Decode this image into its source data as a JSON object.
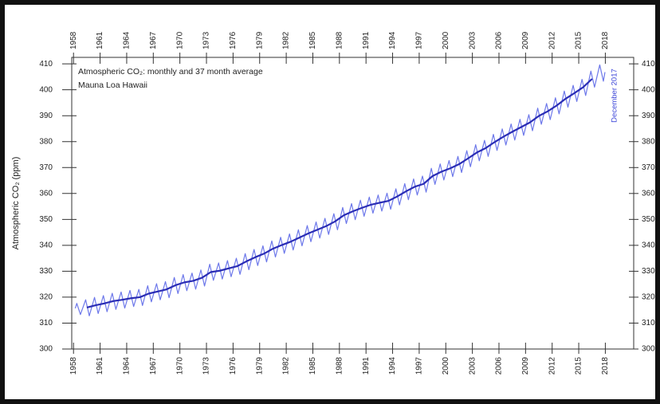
{
  "chart_data": {
    "type": "line",
    "title": "Atmospheric CO₂: monthly and 37 month average",
    "subtitle": "Mauna Loa Hawaii",
    "y_label": "Atmospheric CO₂ (ppm)",
    "annotation": "December 2017",
    "xlim": [
      1957.8,
      2021.2
    ],
    "ylim": [
      300,
      412.5
    ],
    "xticks": [
      1958,
      1961,
      1964,
      1967,
      1970,
      1973,
      1976,
      1979,
      1982,
      1985,
      1988,
      1991,
      1994,
      1997,
      2000,
      2003,
      2006,
      2009,
      2012,
      2015,
      2018
    ],
    "yticks": [
      300,
      310,
      320,
      330,
      340,
      350,
      360,
      370,
      380,
      390,
      400,
      410
    ],
    "grid": false,
    "series": [
      {
        "color": "#6d78ea",
        "x": [
          1958.2,
          1958.37,
          1958.78,
          1959.37,
          1959.78,
          1960.37,
          1960.78,
          1961.37,
          1961.78,
          1962.37,
          1962.78,
          1963.37,
          1963.78,
          1964.37,
          1964.78,
          1965.37,
          1965.78,
          1966.37,
          1966.78,
          1967.37,
          1967.78,
          1968.37,
          1968.78,
          1969.37,
          1969.78,
          1970.37,
          1970.78,
          1971.37,
          1971.78,
          1972.37,
          1972.78,
          1973.37,
          1973.78,
          1974.37,
          1974.78,
          1975.37,
          1975.78,
          1976.37,
          1976.78,
          1977.37,
          1977.78,
          1978.37,
          1978.78,
          1979.37,
          1979.78,
          1980.37,
          1980.78,
          1981.37,
          1981.78,
          1982.37,
          1982.78,
          1983.37,
          1983.78,
          1984.37,
          1984.78,
          1985.37,
          1985.78,
          1986.37,
          1986.78,
          1987.37,
          1987.78,
          1988.37,
          1988.78,
          1989.37,
          1989.78,
          1990.37,
          1990.78,
          1991.37,
          1991.78,
          1992.37,
          1992.78,
          1993.37,
          1993.78,
          1994.37,
          1994.78,
          1995.37,
          1995.78,
          1996.37,
          1996.78,
          1997.37,
          1997.78,
          1998.37,
          1998.78,
          1999.37,
          1999.78,
          2000.37,
          2000.78,
          2001.37,
          2001.78,
          2002.37,
          2002.78,
          2003.37,
          2003.78,
          2004.37,
          2004.78,
          2005.37,
          2005.78,
          2006.37,
          2006.78,
          2007.37,
          2007.78,
          2008.37,
          2008.78,
          2009.37,
          2009.78,
          2010.37,
          2010.78,
          2011.37,
          2011.78,
          2012.37,
          2012.78,
          2013.37,
          2013.78,
          2014.37,
          2014.78,
          2015.37,
          2015.78,
          2016.37,
          2016.78,
          2017.37,
          2017.78,
          2017.96
        ],
        "values": [
          315.7,
          317.6,
          313.3,
          319.0,
          312.8,
          319.9,
          313.7,
          320.6,
          314.4,
          321.5,
          315.3,
          322.0,
          315.8,
          322.6,
          316.4,
          323.0,
          316.8,
          324.4,
          318.2,
          325.2,
          319.0,
          326.0,
          319.8,
          327.6,
          321.4,
          328.7,
          322.5,
          329.3,
          323.1,
          330.5,
          324.3,
          332.7,
          326.5,
          333.2,
          327.0,
          334.1,
          327.9,
          335.0,
          328.8,
          336.8,
          330.6,
          338.4,
          332.2,
          339.8,
          333.6,
          341.7,
          335.5,
          343.1,
          336.9,
          344.4,
          338.2,
          346.0,
          339.8,
          347.6,
          341.4,
          349.0,
          342.8,
          350.4,
          344.2,
          352.2,
          346.0,
          354.6,
          348.4,
          356.1,
          349.9,
          357.4,
          351.2,
          358.6,
          352.4,
          359.4,
          353.2,
          360.1,
          353.9,
          361.8,
          355.6,
          363.8,
          357.6,
          365.6,
          359.4,
          366.7,
          360.5,
          369.7,
          363.5,
          371.4,
          365.2,
          372.7,
          366.5,
          374.3,
          368.1,
          376.5,
          370.3,
          378.8,
          372.6,
          380.5,
          374.3,
          382.8,
          376.6,
          384.9,
          378.7,
          386.8,
          380.6,
          388.6,
          382.4,
          390.4,
          384.2,
          392.9,
          386.7,
          394.7,
          388.5,
          396.9,
          390.7,
          399.5,
          393.3,
          401.7,
          395.5,
          404.0,
          397.8,
          407.2,
          401.0,
          409.6,
          403.3,
          406.8
        ]
      },
      {
        "color": "#2a2db5",
        "x": [
          1959.5,
          1960.5,
          1961.5,
          1962.5,
          1963.5,
          1964.5,
          1965.5,
          1966.5,
          1967.5,
          1968.5,
          1969.5,
          1970.5,
          1971.5,
          1972.5,
          1973.5,
          1974.5,
          1975.5,
          1976.5,
          1977.5,
          1978.5,
          1979.5,
          1980.5,
          1981.5,
          1982.5,
          1983.5,
          1984.5,
          1985.5,
          1986.5,
          1987.5,
          1988.5,
          1989.5,
          1990.5,
          1991.5,
          1992.5,
          1993.5,
          1994.5,
          1995.5,
          1996.5,
          1997.5,
          1998.5,
          1999.5,
          2000.5,
          2001.5,
          2002.5,
          2003.5,
          2004.5,
          2005.5,
          2006.5,
          2007.5,
          2008.5,
          2009.5,
          2010.5,
          2011.5,
          2012.5,
          2013.5,
          2014.5,
          2015.5,
          2016.5
        ],
        "values": [
          316.0,
          316.9,
          317.6,
          318.5,
          319.0,
          319.6,
          320.0,
          321.4,
          322.2,
          323.0,
          324.6,
          325.7,
          326.3,
          327.5,
          329.7,
          330.2,
          331.1,
          332.0,
          333.8,
          335.4,
          336.8,
          338.7,
          340.1,
          341.4,
          343.0,
          344.6,
          346.0,
          347.4,
          349.2,
          351.6,
          353.1,
          354.4,
          355.6,
          356.4,
          357.1,
          358.8,
          360.8,
          362.6,
          363.7,
          366.7,
          368.4,
          369.7,
          371.3,
          373.5,
          375.8,
          377.5,
          379.8,
          381.9,
          383.8,
          385.6,
          387.4,
          389.9,
          391.7,
          393.9,
          396.5,
          398.7,
          401.0,
          404.2
        ]
      }
    ]
  }
}
